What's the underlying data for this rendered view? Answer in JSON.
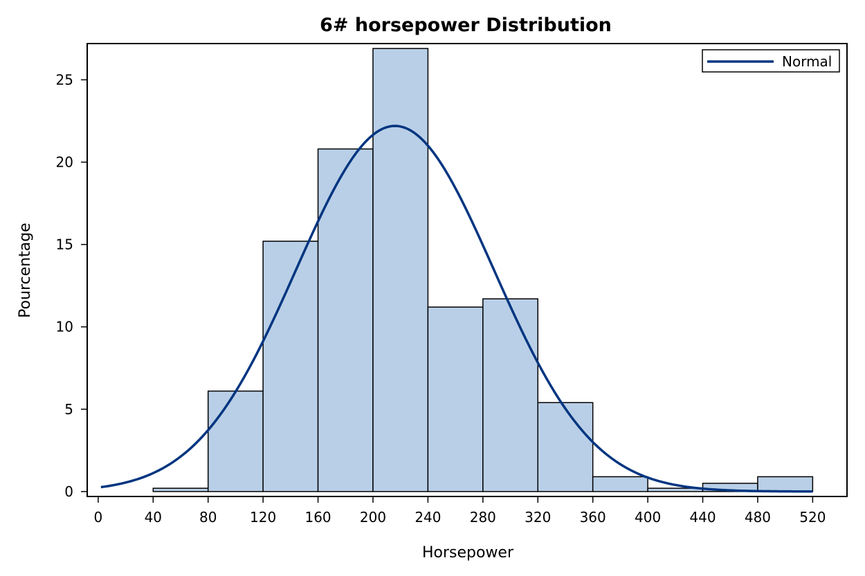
{
  "chart_data": {
    "type": "bar",
    "title": "6# horsepower Distribution",
    "xlabel": "Horsepower",
    "ylabel": "Pourcentage",
    "bins": [
      {
        "start": 40,
        "end": 80,
        "value": 0.2
      },
      {
        "start": 80,
        "end": 120,
        "value": 6.1
      },
      {
        "start": 120,
        "end": 160,
        "value": 15.2
      },
      {
        "start": 160,
        "end": 200,
        "value": 20.8
      },
      {
        "start": 200,
        "end": 240,
        "value": 26.9
      },
      {
        "start": 240,
        "end": 280,
        "value": 11.2
      },
      {
        "start": 280,
        "end": 320,
        "value": 11.7
      },
      {
        "start": 320,
        "end": 360,
        "value": 5.4
      },
      {
        "start": 360,
        "end": 400,
        "value": 0.9
      },
      {
        "start": 400,
        "end": 440,
        "value": 0.2
      },
      {
        "start": 440,
        "end": 480,
        "value": 0.5
      },
      {
        "start": 480,
        "end": 520,
        "value": 0.9
      }
    ],
    "x_ticks": [
      0,
      40,
      80,
      120,
      160,
      200,
      240,
      280,
      320,
      360,
      400,
      440,
      480,
      520
    ],
    "y_ticks": [
      0,
      5,
      10,
      15,
      20,
      25
    ],
    "xlim": [
      -8,
      545
    ],
    "ylim": [
      -0.3,
      27.2
    ],
    "normal_curve": {
      "name": "Normal",
      "mean": 216,
      "sd": 72,
      "peak_percent": 22.2,
      "x_range": [
        2,
        520
      ]
    },
    "legend": {
      "placement": "top-right",
      "entries": [
        "Normal"
      ]
    },
    "grid": false,
    "colors": {
      "bar_fill": "#b9cfe7",
      "bar_stroke": "#000000",
      "curve": "#003580",
      "axis": "#000000"
    }
  }
}
